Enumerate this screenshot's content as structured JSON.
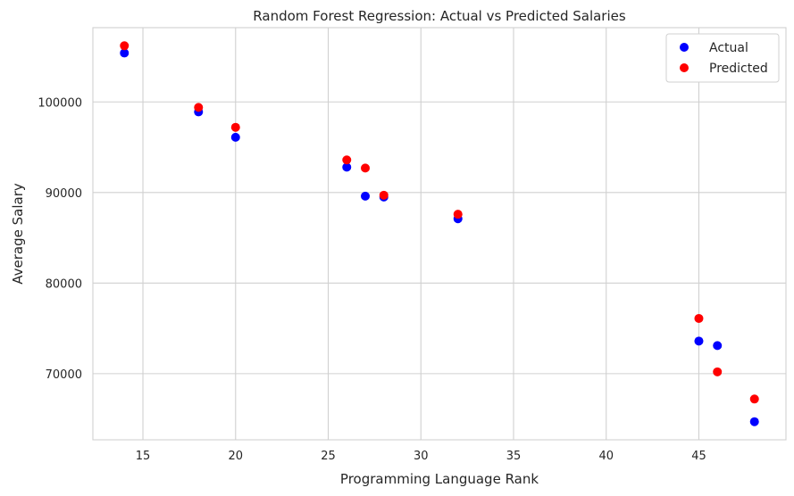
{
  "chart_data": {
    "type": "scatter",
    "title": "Random Forest Regression: Actual vs Predicted Salaries",
    "xlabel": "Programming Language Rank",
    "ylabel": "Average Salary",
    "xlim": [
      12.3,
      49.7
    ],
    "ylim": [
      62700,
      108200
    ],
    "xticks": [
      15,
      20,
      25,
      30,
      35,
      40,
      45
    ],
    "yticks": [
      70000,
      80000,
      90000,
      100000
    ],
    "grid": true,
    "legend_position": "top-right",
    "series": [
      {
        "name": "Actual",
        "color": "#0000ff",
        "points": [
          {
            "x": 14,
            "y": 105400
          },
          {
            "x": 18,
            "y": 98900
          },
          {
            "x": 20,
            "y": 96100
          },
          {
            "x": 26,
            "y": 92800
          },
          {
            "x": 27,
            "y": 89600
          },
          {
            "x": 28,
            "y": 89500
          },
          {
            "x": 32,
            "y": 87100
          },
          {
            "x": 45,
            "y": 73600
          },
          {
            "x": 46,
            "y": 73100
          },
          {
            "x": 48,
            "y": 64700
          }
        ]
      },
      {
        "name": "Predicted",
        "color": "#ff0000",
        "points": [
          {
            "x": 14,
            "y": 106200
          },
          {
            "x": 18,
            "y": 99400
          },
          {
            "x": 20,
            "y": 97200
          },
          {
            "x": 26,
            "y": 93600
          },
          {
            "x": 27,
            "y": 92700
          },
          {
            "x": 28,
            "y": 89700
          },
          {
            "x": 32,
            "y": 87600
          },
          {
            "x": 45,
            "y": 76100
          },
          {
            "x": 46,
            "y": 70200
          },
          {
            "x": 48,
            "y": 67200
          }
        ]
      }
    ]
  }
}
